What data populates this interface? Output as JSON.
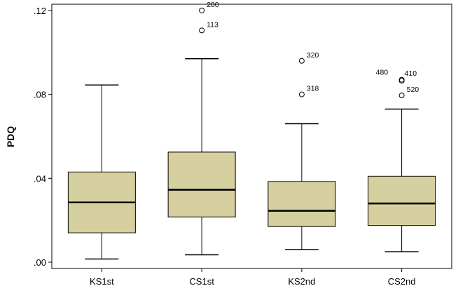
{
  "chart_data": {
    "type": "boxplot",
    "title": "",
    "xlabel": "",
    "ylabel": "PDQ",
    "ylim": [
      -0.003,
      0.123
    ],
    "yticks": [
      {
        "value": 0.0,
        "label": ".00"
      },
      {
        "value": 0.04,
        "label": ".04"
      },
      {
        "value": 0.08,
        "label": ".08"
      },
      {
        "value": 0.12,
        "label": ".12"
      }
    ],
    "categories": [
      "KS1st",
      "CS1st",
      "KS2nd",
      "CS2nd"
    ],
    "boxes": [
      {
        "category": "KS1st",
        "whisker_low": 0.0015,
        "q1": 0.014,
        "median": 0.0285,
        "q3": 0.043,
        "whisker_high": 0.0845,
        "outliers": []
      },
      {
        "category": "CS1st",
        "whisker_low": 0.0035,
        "q1": 0.0215,
        "median": 0.0345,
        "q3": 0.0525,
        "whisker_high": 0.097,
        "outliers": [
          {
            "value": 0.12,
            "label": "200"
          },
          {
            "value": 0.1105,
            "label": "113"
          }
        ]
      },
      {
        "category": "KS2nd",
        "whisker_low": 0.006,
        "q1": 0.017,
        "median": 0.0245,
        "q3": 0.0385,
        "whisker_high": 0.066,
        "outliers": [
          {
            "value": 0.096,
            "label": "320"
          },
          {
            "value": 0.08,
            "label": "318"
          }
        ]
      },
      {
        "category": "CS2nd",
        "whisker_low": 0.005,
        "q1": 0.0175,
        "median": 0.028,
        "q3": 0.041,
        "whisker_high": 0.073,
        "outliers": [
          {
            "value": 0.087,
            "label": "480"
          },
          {
            "value": 0.0865,
            "label": "410"
          },
          {
            "value": 0.0795,
            "label": "520"
          }
        ]
      }
    ],
    "grid": false,
    "colors": {
      "box_fill": "#d6d0a0",
      "stroke": "#000000",
      "plot_bg": "#ffffff"
    }
  }
}
